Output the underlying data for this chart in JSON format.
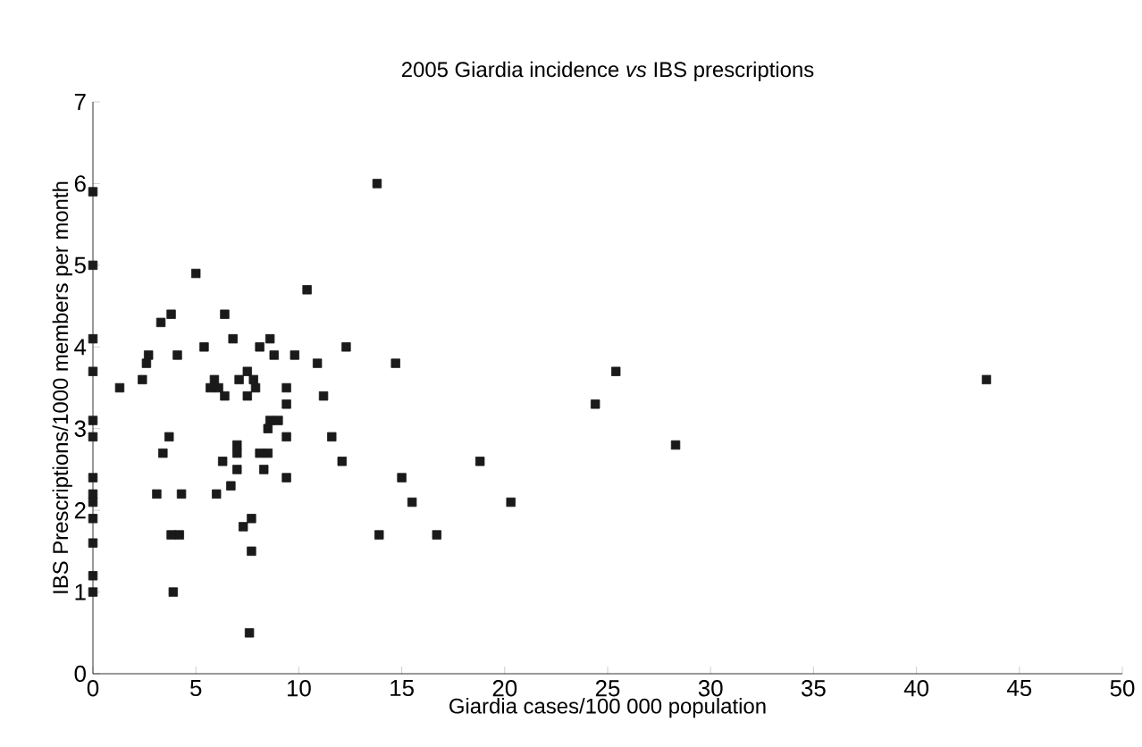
{
  "chart_data": {
    "type": "scatter",
    "title": "2005 Giardia incidence *vs* IBS prescriptions",
    "xlabel": "Giardia cases/100 000 population",
    "ylabel": "IBS Prescriptions/1000 members per month",
    "xlim": [
      0,
      50
    ],
    "ylim": [
      0,
      7
    ],
    "xticks": [
      0,
      5,
      10,
      15,
      20,
      25,
      30,
      35,
      40,
      45,
      50
    ],
    "yticks": [
      0,
      1,
      2,
      3,
      4,
      5,
      6,
      7
    ],
    "marker": "square",
    "series": [
      {
        "color": "#1a1a1a",
        "x": [
          0,
          0,
          0,
          0,
          0,
          0,
          0,
          0,
          0,
          0,
          0,
          0,
          0,
          1.3,
          2.4,
          2.6,
          2.7,
          3.1,
          3.3,
          3.4,
          3.7,
          3.8,
          3.8,
          3.9,
          4.1,
          4.2,
          4.3,
          5.0,
          5.4,
          5.7,
          5.9,
          6.1,
          6.0,
          6.3,
          6.4,
          6.4,
          6.7,
          6.8,
          7.0,
          7.0,
          7.0,
          7.1,
          7.3,
          7.5,
          7.5,
          7.6,
          7.7,
          7.7,
          7.8,
          7.9,
          8.1,
          8.1,
          8.3,
          8.5,
          8.5,
          8.6,
          8.6,
          8.8,
          9.0,
          9.4,
          9.4,
          9.4,
          9.4,
          9.8,
          10.4,
          10.9,
          11.2,
          11.6,
          12.1,
          12.3,
          13.8,
          13.9,
          14.7,
          15.0,
          15.5,
          16.7,
          18.8,
          20.3,
          24.4,
          25.4,
          28.3,
          43.4
        ],
        "values": [
          5.9,
          5.0,
          4.1,
          3.7,
          3.1,
          2.9,
          2.4,
          2.2,
          2.1,
          1.9,
          1.6,
          1.2,
          1.0,
          3.5,
          3.6,
          3.8,
          3.9,
          2.2,
          4.3,
          2.7,
          2.9,
          4.4,
          1.7,
          1.0,
          3.9,
          1.7,
          2.2,
          4.9,
          4.0,
          3.5,
          3.6,
          3.5,
          2.2,
          2.6,
          4.4,
          3.4,
          2.3,
          4.1,
          2.8,
          2.7,
          2.5,
          3.6,
          1.8,
          3.4,
          3.7,
          0.5,
          1.9,
          1.5,
          3.6,
          3.5,
          4.0,
          2.7,
          2.5,
          2.7,
          3.0,
          4.1,
          3.1,
          3.9,
          3.1,
          3.5,
          3.3,
          2.9,
          2.4,
          3.9,
          4.7,
          3.8,
          3.4,
          2.9,
          2.6,
          4.0,
          6.0,
          1.7,
          3.8,
          2.4,
          2.1,
          1.7,
          2.6,
          2.1,
          3.3,
          3.7,
          2.8,
          3.6
        ]
      }
    ]
  }
}
